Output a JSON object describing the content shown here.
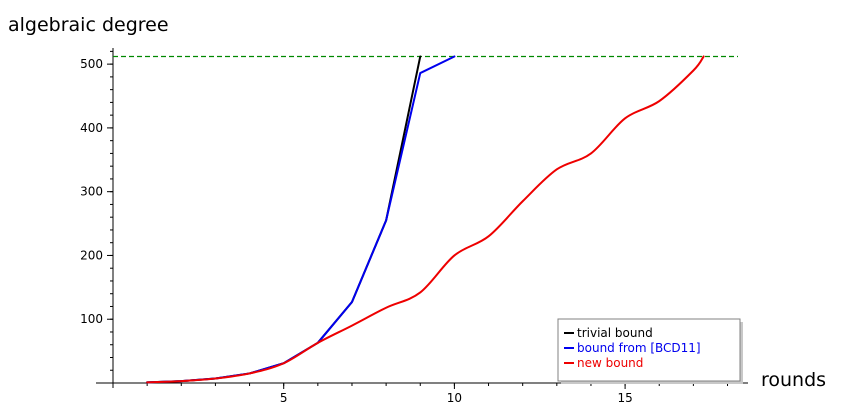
{
  "chart_data": {
    "type": "line",
    "title": "",
    "xlabel": "rounds",
    "ylabel": "algebraic degree",
    "xlim": [
      0,
      18.6
    ],
    "ylim": [
      0,
      530
    ],
    "x_ticks": [
      5,
      10,
      15
    ],
    "y_ticks": [
      100,
      200,
      300,
      400,
      500
    ],
    "grid": false,
    "legend_placement": "bottom-right",
    "reference_line": {
      "y": 512,
      "style": "dashed",
      "color": "#008800"
    },
    "series": [
      {
        "name": "trivial bound",
        "color": "#000000",
        "smooth": false,
        "x": [
          1,
          2,
          3,
          4,
          5,
          6,
          7,
          8,
          9
        ],
        "y": [
          1,
          3,
          7,
          15,
          31,
          63,
          127,
          255,
          512
        ]
      },
      {
        "name": "bound from [BCD11]",
        "color": "#0000ee",
        "smooth": false,
        "x": [
          1,
          2,
          3,
          4,
          5,
          6,
          7,
          8,
          9,
          10
        ],
        "y": [
          1,
          3,
          7,
          15,
          31,
          63,
          127,
          255,
          486,
          512
        ]
      },
      {
        "name": "new bound",
        "color": "#ee0000",
        "smooth": true,
        "x": [
          1,
          2,
          3,
          4,
          5,
          6,
          7,
          8,
          9,
          10,
          11,
          12,
          13,
          14,
          15,
          16,
          17,
          17.3
        ],
        "y": [
          1,
          3,
          7,
          15,
          31,
          63,
          90,
          118,
          142,
          200,
          230,
          285,
          335,
          360,
          415,
          442,
          490,
          512
        ]
      }
    ]
  }
}
